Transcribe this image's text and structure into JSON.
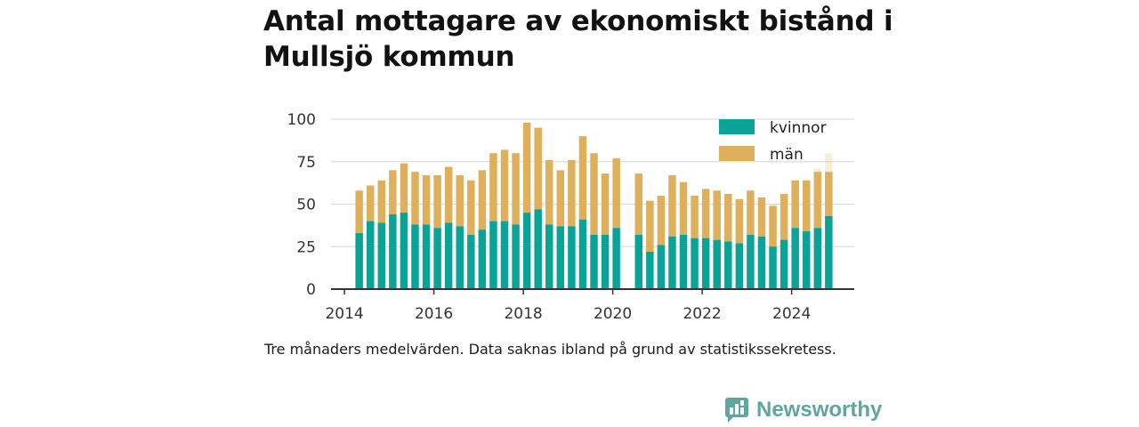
{
  "title": "Antal mottagare av ekonomiskt bistånd i Mullsjö kommun",
  "caption": "Tre månaders medelvärden. Data saknas ibland på grund av statistikssekretess.",
  "brand": {
    "name": "Newsworthy",
    "icon": "newsworthy-logo-icon"
  },
  "colors": {
    "kvinnor": "#0aa398",
    "man": "#deb05c",
    "grid": "#dddddd",
    "axis": "#333333"
  },
  "chart_data": {
    "type": "bar",
    "stacked": true,
    "grid": true,
    "legend_position": "top-right",
    "ylim": [
      0,
      100
    ],
    "yticks": [
      0,
      25,
      50,
      75,
      100
    ],
    "xlim": [
      2013.7,
      2025.4
    ],
    "xticks": [
      2014,
      2016,
      2018,
      2020,
      2022,
      2024
    ],
    "x": [
      2014.33,
      2014.58,
      2014.83,
      2015.08,
      2015.33,
      2015.58,
      2015.83,
      2016.08,
      2016.33,
      2016.58,
      2016.83,
      2017.08,
      2017.33,
      2017.58,
      2017.83,
      2018.08,
      2018.33,
      2018.58,
      2018.83,
      2019.08,
      2019.33,
      2019.58,
      2019.83,
      2020.08,
      2020.58,
      2020.83,
      2021.08,
      2021.33,
      2021.58,
      2021.83,
      2022.08,
      2022.33,
      2022.58,
      2022.83,
      2023.08,
      2023.33,
      2023.58,
      2023.83,
      2024.08,
      2024.33,
      2024.58,
      2024.83
    ],
    "series": [
      {
        "name": "kvinnor",
        "values": [
          33,
          40,
          39,
          44,
          45,
          38,
          38,
          36,
          39,
          37,
          32,
          35,
          40,
          40,
          38,
          45,
          47,
          38,
          37,
          37,
          41,
          32,
          32,
          36,
          32,
          22,
          26,
          31,
          32,
          30,
          30,
          29,
          28,
          27,
          32,
          31,
          25,
          29,
          36,
          34,
          36,
          43
        ]
      },
      {
        "name": "män",
        "values": [
          25,
          21,
          25,
          26,
          29,
          31,
          29,
          31,
          33,
          30,
          32,
          35,
          40,
          42,
          42,
          53,
          48,
          38,
          33,
          39,
          49,
          48,
          36,
          41,
          36,
          30,
          29,
          36,
          31,
          25,
          29,
          29,
          28,
          26,
          26,
          23,
          24,
          27,
          28,
          30,
          33,
          26
        ]
      }
    ],
    "faded_extensions": [
      {
        "x": 2023.58,
        "total": 50
      },
      {
        "x": 2024.58,
        "total": 71
      },
      {
        "x": 2024.83,
        "total": 80
      }
    ]
  }
}
